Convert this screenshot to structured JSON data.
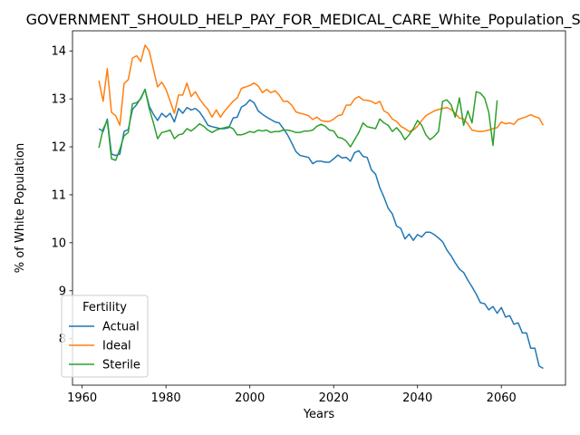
{
  "chart_data": {
    "type": "line",
    "title": "GOVERNMENT_SHOULD_HELP_PAY_FOR_MEDICAL_CARE_White_Population_Score",
    "xlabel": "Years",
    "ylabel": "% of White Population",
    "xlim": [
      1957.7,
      2075.3
    ],
    "ylim": [
      7.03,
      14.42
    ],
    "xticks": [
      1960,
      1980,
      2000,
      2020,
      2040,
      2060
    ],
    "yticks": [
      8,
      9,
      10,
      11,
      12,
      13,
      14
    ],
    "grid": false,
    "legend": {
      "title": "Fertility",
      "location": "lower-left"
    },
    "series": [
      {
        "name": "Actual",
        "color": "#1f77b4",
        "x": [
          1964,
          1965,
          1966,
          1967,
          1968,
          1969,
          1970,
          1971,
          1972,
          1973,
          1974,
          1975,
          1976,
          1977,
          1978,
          1979,
          1980,
          1981,
          1982,
          1983,
          1984,
          1985,
          1986,
          1987,
          1988,
          1989,
          1990,
          1991,
          1992,
          1993,
          1994,
          1995,
          1996,
          1997,
          1998,
          1999,
          2000,
          2001,
          2002,
          2003,
          2004,
          2005,
          2006,
          2007,
          2008,
          2009,
          2010,
          2011,
          2012,
          2013,
          2014,
          2015,
          2016,
          2017,
          2018,
          2019,
          2020,
          2021,
          2022,
          2023,
          2024,
          2025,
          2026,
          2027,
          2028,
          2029,
          2030,
          2031,
          2032,
          2033,
          2034,
          2035,
          2036,
          2037,
          2038,
          2039,
          2040,
          2041,
          2042,
          2043,
          2044,
          2045,
          2046,
          2047,
          2048,
          2049,
          2050,
          2051,
          2052,
          2053,
          2054,
          2055,
          2056,
          2057,
          2058,
          2059,
          2060,
          2061,
          2062,
          2063,
          2064,
          2065,
          2066,
          2067,
          2068,
          2069,
          2070
        ],
        "y": [
          12.38,
          12.32,
          12.58,
          11.85,
          11.82,
          11.85,
          12.32,
          12.36,
          12.78,
          12.88,
          13.02,
          13.2,
          12.85,
          12.68,
          12.55,
          12.7,
          12.62,
          12.7,
          12.52,
          12.8,
          12.7,
          12.82,
          12.77,
          12.8,
          12.73,
          12.6,
          12.45,
          12.42,
          12.4,
          12.38,
          12.38,
          12.4,
          12.6,
          12.62,
          12.83,
          12.88,
          12.98,
          12.92,
          12.75,
          12.68,
          12.62,
          12.57,
          12.52,
          12.5,
          12.38,
          12.25,
          12.08,
          11.9,
          11.82,
          11.8,
          11.78,
          11.65,
          11.7,
          11.7,
          11.68,
          11.68,
          11.75,
          11.83,
          11.77,
          11.78,
          11.7,
          11.88,
          11.92,
          11.8,
          11.78,
          11.52,
          11.43,
          11.15,
          10.95,
          10.72,
          10.6,
          10.35,
          10.3,
          10.08,
          10.18,
          10.05,
          10.17,
          10.12,
          10.22,
          10.22,
          10.17,
          10.1,
          10.02,
          9.85,
          9.73,
          9.58,
          9.45,
          9.38,
          9.22,
          9.08,
          8.93,
          8.75,
          8.73,
          8.6,
          8.67,
          8.53,
          8.65,
          8.45,
          8.48,
          8.3,
          8.33,
          8.12,
          8.12,
          7.8,
          7.8,
          7.43,
          7.38
        ]
      },
      {
        "name": "Ideal",
        "color": "#ff7f0e",
        "x": [
          1964,
          1965,
          1966,
          1967,
          1968,
          1969,
          1970,
          1971,
          1972,
          1973,
          1974,
          1975,
          1976,
          1977,
          1978,
          1979,
          1980,
          1981,
          1982,
          1983,
          1984,
          1985,
          1986,
          1987,
          1988,
          1989,
          1990,
          1991,
          1992,
          1993,
          1994,
          1995,
          1996,
          1997,
          1998,
          1999,
          2000,
          2001,
          2002,
          2003,
          2004,
          2005,
          2006,
          2007,
          2008,
          2009,
          2010,
          2011,
          2012,
          2013,
          2014,
          2015,
          2016,
          2017,
          2018,
          2019,
          2020,
          2021,
          2022,
          2023,
          2024,
          2025,
          2026,
          2027,
          2028,
          2029,
          2030,
          2031,
          2032,
          2033,
          2034,
          2035,
          2036,
          2037,
          2038,
          2039,
          2040,
          2041,
          2042,
          2043,
          2044,
          2045,
          2046,
          2047,
          2048,
          2049,
          2050,
          2051,
          2052,
          2053,
          2054,
          2055,
          2056,
          2057,
          2058,
          2059,
          2060,
          2061,
          2062,
          2063,
          2064,
          2065,
          2066,
          2067,
          2068,
          2069,
          2070
        ],
        "y": [
          13.38,
          12.95,
          13.63,
          12.72,
          12.65,
          12.45,
          13.32,
          13.4,
          13.85,
          13.9,
          13.78,
          14.12,
          14.0,
          13.62,
          13.25,
          13.35,
          13.2,
          12.95,
          12.7,
          13.08,
          13.08,
          13.33,
          13.05,
          13.15,
          13.0,
          12.88,
          12.78,
          12.62,
          12.77,
          12.62,
          12.75,
          12.85,
          12.95,
          13.02,
          13.22,
          13.25,
          13.28,
          13.33,
          13.27,
          13.13,
          13.2,
          13.13,
          13.17,
          13.08,
          12.95,
          12.95,
          12.87,
          12.73,
          12.7,
          12.68,
          12.65,
          12.57,
          12.62,
          12.55,
          12.53,
          12.53,
          12.58,
          12.65,
          12.67,
          12.87,
          12.87,
          13.0,
          13.05,
          12.98,
          12.97,
          12.95,
          12.9,
          12.95,
          12.75,
          12.7,
          12.58,
          12.53,
          12.43,
          12.38,
          12.32,
          12.35,
          12.43,
          12.55,
          12.65,
          12.7,
          12.75,
          12.78,
          12.8,
          12.82,
          12.78,
          12.7,
          12.6,
          12.58,
          12.48,
          12.35,
          12.33,
          12.32,
          12.33,
          12.35,
          12.38,
          12.4,
          12.52,
          12.48,
          12.5,
          12.47,
          12.57,
          12.6,
          12.63,
          12.67,
          12.63,
          12.6,
          12.45
        ]
      },
      {
        "name": "Sterile",
        "color": "#2ca02c",
        "x": [
          1964,
          1965,
          1966,
          1967,
          1968,
          1969,
          1970,
          1971,
          1972,
          1973,
          1974,
          1975,
          1976,
          1977,
          1978,
          1979,
          1980,
          1981,
          1982,
          1983,
          1984,
          1985,
          1986,
          1987,
          1988,
          1989,
          1990,
          1991,
          1992,
          1993,
          1994,
          1995,
          1996,
          1997,
          1998,
          1999,
          2000,
          2001,
          2002,
          2003,
          2004,
          2005,
          2006,
          2007,
          2008,
          2009,
          2010,
          2011,
          2012,
          2013,
          2014,
          2015,
          2016,
          2017,
          2018,
          2019,
          2020,
          2021,
          2022,
          2023,
          2024,
          2025,
          2026,
          2027,
          2028,
          2029,
          2030,
          2031,
          2032,
          2033,
          2034,
          2035,
          2036,
          2037,
          2038,
          2039,
          2040,
          2041,
          2042,
          2043,
          2044,
          2045,
          2046,
          2047,
          2048,
          2049,
          2050,
          2051,
          2052,
          2053,
          2054,
          2055,
          2056,
          2057,
          2058,
          2059
        ],
        "y": [
          11.98,
          12.37,
          12.55,
          11.75,
          11.72,
          11.95,
          12.23,
          12.3,
          12.9,
          12.92,
          13.0,
          13.2,
          12.8,
          12.5,
          12.17,
          12.3,
          12.32,
          12.35,
          12.17,
          12.25,
          12.27,
          12.38,
          12.33,
          12.4,
          12.48,
          12.43,
          12.35,
          12.3,
          12.35,
          12.38,
          12.4,
          12.42,
          12.38,
          12.25,
          12.25,
          12.28,
          12.32,
          12.3,
          12.35,
          12.33,
          12.35,
          12.3,
          12.32,
          12.32,
          12.35,
          12.35,
          12.33,
          12.3,
          12.3,
          12.33,
          12.33,
          12.35,
          12.43,
          12.47,
          12.43,
          12.35,
          12.33,
          12.2,
          12.18,
          12.12,
          12.0,
          12.15,
          12.3,
          12.5,
          12.42,
          12.4,
          12.38,
          12.58,
          12.5,
          12.45,
          12.32,
          12.4,
          12.3,
          12.15,
          12.25,
          12.38,
          12.55,
          12.45,
          12.25,
          12.15,
          12.22,
          12.32,
          12.95,
          12.98,
          12.88,
          12.62,
          13.02,
          12.45,
          12.75,
          12.5,
          13.15,
          13.12,
          13.02,
          12.72,
          12.03,
          12.97
        ]
      }
    ]
  }
}
